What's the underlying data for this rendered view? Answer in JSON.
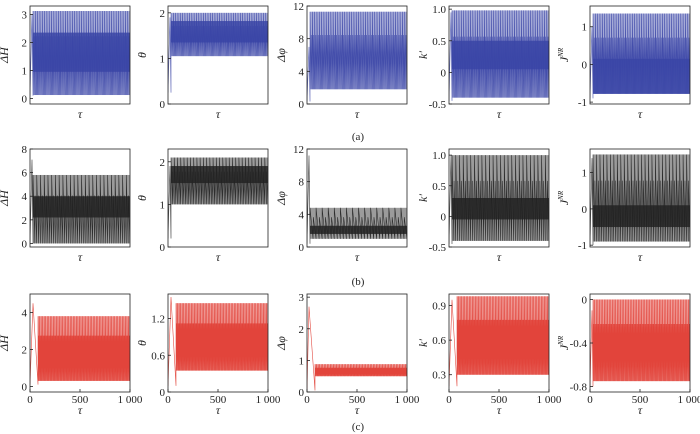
{
  "captions": [
    "(a)",
    "(b)",
    "(c)"
  ],
  "chart_data": [
    {
      "id": "a1",
      "type": "line",
      "row": 0,
      "col": 0,
      "xlabel": "τ",
      "ylabel": "ΔH",
      "ylim": [
        -0.2,
        3.3
      ],
      "yticks": [
        "0",
        "1",
        "2",
        "3"
      ],
      "ytick_values": [
        0,
        1,
        2,
        3
      ],
      "xticks": [],
      "xlim": [
        0,
        1000
      ],
      "color": "#3a45a6",
      "data_description": "dense oscillation",
      "series": [
        {
          "x_start": 30,
          "x_end": 1000,
          "cycles": 42,
          "lo": 0.12,
          "hi": 3.12,
          "band": [
            0.95,
            2.35
          ],
          "spike": [
            20,
            3.0
          ],
          "dip": [
            0.1
          ]
        }
      ]
    },
    {
      "id": "a2",
      "type": "line",
      "row": 0,
      "col": 1,
      "xlabel": "τ",
      "ylabel": "θ",
      "ylim": [
        0,
        2.15
      ],
      "yticks": [
        "0",
        "1",
        "2"
      ],
      "ytick_values": [
        0,
        1,
        2
      ],
      "xticks": [],
      "xlim": [
        0,
        1000
      ],
      "color": "#3a45a6",
      "series": [
        {
          "x_start": 30,
          "x_end": 1000,
          "cycles": 42,
          "lo": 1.05,
          "hi": 2.0,
          "band": [
            1.35,
            1.82
          ],
          "spike": [
            20,
            1.9
          ],
          "dip": [
            0.25
          ]
        }
      ]
    },
    {
      "id": "a3",
      "type": "line",
      "row": 0,
      "col": 2,
      "xlabel": "τ",
      "ylabel": "Δφ",
      "ylim": [
        0,
        12
      ],
      "yticks": [
        "0",
        "4",
        "8",
        "12"
      ],
      "ytick_values": [
        0,
        4,
        8,
        12
      ],
      "xticks": [],
      "xlim": [
        0,
        1000
      ],
      "color": "#3a45a6",
      "series": [
        {
          "x_start": 30,
          "x_end": 1000,
          "cycles": 42,
          "lo": 1.8,
          "hi": 11.3,
          "band": null,
          "spike": [
            20,
            7.0
          ],
          "dip": [
            0.3
          ]
        }
      ]
    },
    {
      "id": "a4",
      "type": "line",
      "row": 0,
      "col": 3,
      "xlabel": "τ",
      "ylabel": "k′",
      "ylim": [
        -0.5,
        1.05
      ],
      "yticks": [
        "-0.5",
        "0",
        "0.5",
        "1.0"
      ],
      "ytick_values": [
        -0.5,
        0,
        0.5,
        1.0
      ],
      "xticks": [],
      "xlim": [
        0,
        1000
      ],
      "color": "#3a45a6",
      "series": [
        {
          "x_start": 30,
          "x_end": 1000,
          "cycles": 42,
          "lo": -0.4,
          "hi": 0.98,
          "band": [
            0.05,
            0.5
          ],
          "spike": [
            20,
            0.95
          ],
          "dip": [
            -0.45
          ]
        }
      ]
    },
    {
      "id": "a5",
      "type": "line",
      "row": 0,
      "col": 4,
      "xlabel": "τ",
      "ylabel": "JNR",
      "ylim": [
        -1.05,
        1.55
      ],
      "yticks": [
        "-1",
        "0",
        "1"
      ],
      "ytick_values": [
        -1,
        0,
        1
      ],
      "xticks": [],
      "xlim": [
        0,
        1000
      ],
      "color": "#3a45a6",
      "series": [
        {
          "x_start": 30,
          "x_end": 1000,
          "cycles": 42,
          "lo": -0.78,
          "hi": 1.35,
          "band": [
            -0.78,
            0.15
          ],
          "spike": [
            20,
            1.0
          ],
          "dip": [
            -0.9
          ]
        }
      ]
    },
    {
      "id": "b1",
      "type": "line",
      "row": 1,
      "col": 0,
      "xlabel": "τ",
      "ylabel": "ΔH",
      "ylim": [
        -0.3,
        8
      ],
      "yticks": [
        "0",
        "2",
        "4",
        "6",
        "8"
      ],
      "ytick_values": [
        0,
        2,
        4,
        6,
        8
      ],
      "xticks": [],
      "xlim": [
        0,
        1000
      ],
      "color": "#222222",
      "series": [
        {
          "x_start": 30,
          "x_end": 1000,
          "cycles": 26,
          "lo": 0.0,
          "hi": 5.8,
          "band": [
            2.2,
            4.0
          ],
          "spike": [
            20,
            7.1
          ],
          "dip": [
            0.0
          ]
        }
      ]
    },
    {
      "id": "b2",
      "type": "line",
      "row": 1,
      "col": 1,
      "xlabel": "τ",
      "ylabel": "θ",
      "ylim": [
        0,
        2.3
      ],
      "yticks": [
        "0",
        "1",
        "2"
      ],
      "ytick_values": [
        0,
        1,
        2
      ],
      "xticks": [],
      "xlim": [
        0,
        1000
      ],
      "color": "#222222",
      "series": [
        {
          "x_start": 30,
          "x_end": 1000,
          "cycles": 30,
          "lo": 1.0,
          "hi": 2.1,
          "band": [
            1.5,
            1.9
          ],
          "spike": [
            20,
            1.9
          ],
          "dip": [
            0.2
          ]
        }
      ]
    },
    {
      "id": "b3",
      "type": "line",
      "row": 1,
      "col": 2,
      "xlabel": "τ",
      "ylabel": "Δφ",
      "ylim": [
        0,
        12
      ],
      "yticks": [
        "0",
        "4",
        "8",
        "12"
      ],
      "ytick_values": [
        0,
        4,
        8,
        12
      ],
      "xticks": [],
      "xlim": [
        0,
        1000
      ],
      "color": "#222222",
      "series": [
        {
          "x_start": 30,
          "x_end": 1000,
          "cycles": 16,
          "lo": 1.0,
          "hi": 4.8,
          "band": [
            1.6,
            2.6
          ],
          "spike": [
            20,
            11.2
          ],
          "dip": [
            0.4
          ]
        }
      ]
    },
    {
      "id": "b4",
      "type": "line",
      "row": 1,
      "col": 3,
      "xlabel": "τ",
      "ylabel": "k′",
      "ylim": [
        -0.5,
        1.1
      ],
      "yticks": [
        "-0.5",
        "0",
        "0.5",
        "1.0"
      ],
      "ytick_values": [
        -0.5,
        0,
        0.5,
        1.0
      ],
      "xticks": [],
      "xlim": [
        0,
        1000
      ],
      "color": "#222222",
      "series": [
        {
          "x_start": 30,
          "x_end": 1000,
          "cycles": 26,
          "lo": -0.4,
          "hi": 1.0,
          "band": [
            -0.05,
            0.3
          ],
          "spike": [
            20,
            1.0
          ],
          "dip": [
            -0.45
          ]
        }
      ]
    },
    {
      "id": "b5",
      "type": "line",
      "row": 1,
      "col": 4,
      "xlabel": "τ",
      "ylabel": "JNR",
      "ylim": [
        -1.05,
        1.65
      ],
      "yticks": [
        "-1",
        "0",
        "1"
      ],
      "ytick_values": [
        -1,
        0,
        1
      ],
      "xticks": [],
      "xlim": [
        0,
        1000
      ],
      "color": "#222222",
      "series": [
        {
          "x_start": 30,
          "x_end": 1000,
          "cycles": 28,
          "lo": -0.9,
          "hi": 1.5,
          "band": [
            -0.5,
            0.1
          ],
          "spike": [
            20,
            1.4
          ],
          "dip": [
            -1.0
          ]
        }
      ]
    },
    {
      "id": "c1",
      "type": "line",
      "row": 2,
      "col": 0,
      "xlabel": "τ",
      "ylabel": "ΔH",
      "ylim": [
        -0.3,
        5
      ],
      "yticks": [
        "0",
        "2",
        "4"
      ],
      "ytick_values": [
        0,
        2,
        4
      ],
      "xticks": [
        "0",
        "500",
        "1 000"
      ],
      "xtick_values": [
        0,
        500,
        1000
      ],
      "xlim": [
        0,
        1000
      ],
      "color": "#e03a30",
      "series": [
        {
          "x_start": 80,
          "x_end": 1000,
          "cycles": 60,
          "lo": 0.3,
          "hi": 3.8,
          "band": null,
          "spike": [
            30,
            4.5
          ],
          "dip": [
            0.1
          ]
        }
      ]
    },
    {
      "id": "c2",
      "type": "line",
      "row": 2,
      "col": 1,
      "xlabel": "τ",
      "ylabel": "θ",
      "ylim": [
        0,
        1.6
      ],
      "yticks": [
        "0",
        "0.6",
        "1.2"
      ],
      "ytick_values": [
        0,
        0.6,
        1.2
      ],
      "xticks": [
        "0",
        "500",
        "1 000"
      ],
      "xtick_values": [
        0,
        500,
        1000
      ],
      "xlim": [
        0,
        1000
      ],
      "color": "#e03a30",
      "series": [
        {
          "x_start": 80,
          "x_end": 1000,
          "cycles": 60,
          "lo": 0.35,
          "hi": 1.45,
          "band": null,
          "spike": [
            30,
            1.55
          ],
          "dip": [
            0.1
          ]
        }
      ]
    },
    {
      "id": "c3",
      "type": "line",
      "row": 2,
      "col": 2,
      "xlabel": "τ",
      "ylabel": "Δφ",
      "ylim": [
        0,
        3.1
      ],
      "yticks": [
        "0",
        "1",
        "2",
        "3"
      ],
      "ytick_values": [
        0,
        1,
        2,
        3
      ],
      "xticks": [
        "0",
        "500",
        "1 000"
      ],
      "xtick_values": [
        0,
        500,
        1000
      ],
      "xlim": [
        0,
        1000
      ],
      "color": "#e03a30",
      "series": [
        {
          "x_start": 80,
          "x_end": 1000,
          "cycles": 60,
          "lo": 0.5,
          "hi": 0.88,
          "band": null,
          "spike": [
            20,
            2.7
          ],
          "dip": [
            0.05
          ]
        }
      ]
    },
    {
      "id": "c4",
      "type": "line",
      "row": 2,
      "col": 3,
      "xlabel": "τ",
      "ylabel": "k′",
      "ylim": [
        0.15,
        1.0
      ],
      "yticks": [
        "0.3",
        "0.6",
        "0.9"
      ],
      "ytick_values": [
        0.3,
        0.6,
        0.9
      ],
      "xticks": [
        "0",
        "500",
        "1 000"
      ],
      "xtick_values": [
        0,
        500,
        1000
      ],
      "xlim": [
        0,
        1000
      ],
      "color": "#e03a30",
      "series": [
        {
          "x_start": 80,
          "x_end": 1000,
          "cycles": 60,
          "lo": 0.3,
          "hi": 0.98,
          "band": null,
          "spike": [
            30,
            0.95
          ],
          "dip": [
            0.2
          ]
        }
      ]
    },
    {
      "id": "c5",
      "type": "line",
      "row": 2,
      "col": 4,
      "xlabel": "τ",
      "ylabel": "JNR",
      "ylim": [
        -0.85,
        0.05
      ],
      "yticks": [
        "-0.8",
        "-0.4",
        "0"
      ],
      "ytick_values": [
        -0.8,
        -0.4,
        0
      ],
      "xticks": [
        "0",
        "500",
        "1 000"
      ],
      "xtick_values": [
        0,
        500,
        1000
      ],
      "xlim": [
        0,
        1000
      ],
      "color": "#e03a30",
      "series": [
        {
          "x_start": 30,
          "x_end": 1000,
          "cycles": 60,
          "lo": -0.75,
          "hi": 0.0,
          "band": null,
          "spike": [
            20,
            -0.1
          ],
          "dip": [
            -0.8
          ]
        }
      ]
    }
  ]
}
